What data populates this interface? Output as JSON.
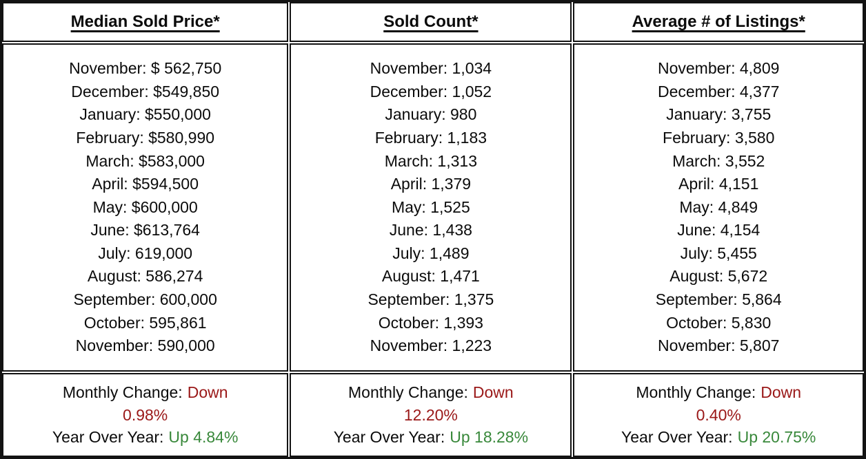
{
  "colors": {
    "down": "#9a1818",
    "up": "#38883a",
    "border": "#131313",
    "text": "#0b0b0b"
  },
  "table": {
    "columns": [
      {
        "header": "Median Sold Price*",
        "lines": [
          "November: $ 562,750",
          "December: $549,850",
          "January: $550,000",
          "February: $580,990",
          "March: $583,000",
          "April: $594,500",
          "May: $600,000",
          "June: $613,764",
          "July: 619,000",
          "August: 586,274",
          "September: 600,000",
          "October: 595,861",
          "November: 590,000"
        ],
        "footer": {
          "monthly_label": "Monthly Change:",
          "monthly_direction": "Down",
          "monthly_value": "0.98%",
          "yoy_label": "Year Over Year:",
          "yoy_change": "Up 4.84%"
        }
      },
      {
        "header": "Sold Count*",
        "lines": [
          "November: 1,034",
          "December: 1,052",
          "January: 980",
          "February: 1,183",
          "March: 1,313",
          "April: 1,379",
          "May: 1,525",
          "June: 1,438",
          "July: 1,489",
          "August: 1,471",
          "September: 1,375",
          "October: 1,393",
          "November: 1,223"
        ],
        "footer": {
          "monthly_label": "Monthly Change:",
          "monthly_direction": "Down",
          "monthly_value": "12.20%",
          "yoy_label": "Year Over Year:",
          "yoy_change": "Up 18.28%"
        }
      },
      {
        "header": "Average # of Listings*",
        "lines": [
          "November: 4,809",
          "December: 4,377",
          "January: 3,755",
          "February: 3,580",
          "March: 3,552",
          "April: 4,151",
          "May: 4,849",
          "June: 4,154",
          "July: 5,455",
          "August: 5,672",
          "September: 5,864",
          "October: 5,830",
          "November: 5,807"
        ],
        "footer": {
          "monthly_label": "Monthly Change:",
          "monthly_direction": "Down",
          "monthly_value": "0.40%",
          "yoy_label": "Year Over Year:",
          "yoy_change": "Up 20.75%"
        }
      }
    ]
  },
  "chart_data": {
    "type": "table",
    "categories": [
      "November",
      "December",
      "January",
      "February",
      "March",
      "April",
      "May",
      "June",
      "July",
      "August",
      "September",
      "October",
      "November"
    ],
    "series": [
      {
        "name": "Median Sold Price*",
        "values": [
          562750,
          549850,
          550000,
          580990,
          583000,
          594500,
          600000,
          613764,
          619000,
          586274,
          600000,
          595861,
          590000
        ]
      },
      {
        "name": "Sold Count*",
        "values": [
          1034,
          1052,
          980,
          1183,
          1313,
          1379,
          1525,
          1438,
          1489,
          1471,
          1375,
          1393,
          1223
        ]
      },
      {
        "name": "Average # of Listings*",
        "values": [
          4809,
          4377,
          3755,
          3580,
          3552,
          4151,
          4849,
          4154,
          5455,
          5672,
          5864,
          5830,
          5807
        ]
      }
    ],
    "summary": [
      {
        "name": "Median Sold Price*",
        "monthly_change": "Down 0.98%",
        "year_over_year": "Up 4.84%"
      },
      {
        "name": "Sold Count*",
        "monthly_change": "Down 12.20%",
        "year_over_year": "Up 18.28%"
      },
      {
        "name": "Average # of Listings*",
        "monthly_change": "Down 0.40%",
        "year_over_year": "Up 20.75%"
      }
    ]
  }
}
